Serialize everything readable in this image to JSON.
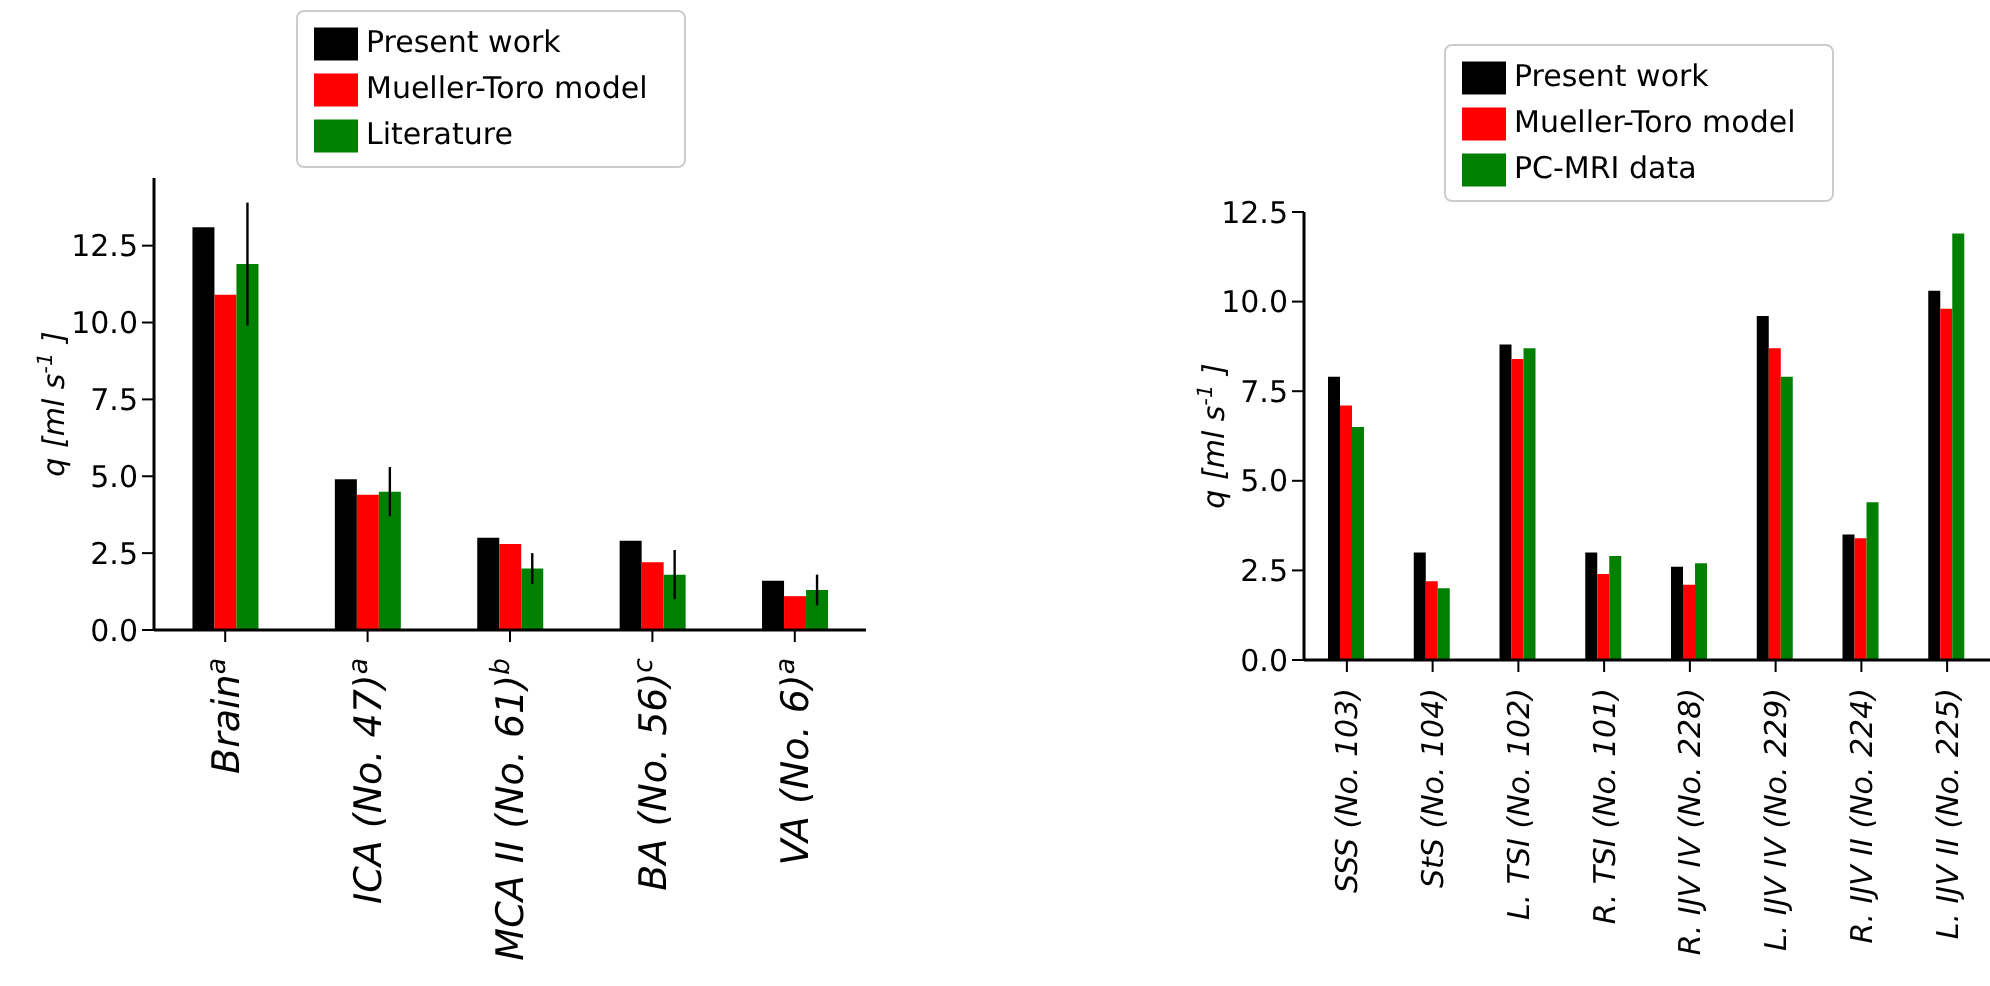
{
  "chart_data": [
    {
      "type": "bar",
      "categories": [
        "Brain$^{a}$",
        "ICA (No. 47)$^{a}$",
        "MCA II (No. 61)$^{b}$",
        "BA (No. 56)$^{c}$",
        "VA (No. 6)$^{a}$"
      ],
      "series": [
        {
          "name": "Present work",
          "color": "#000000",
          "values": [
            13.1,
            4.9,
            3.0,
            2.9,
            1.6
          ]
        },
        {
          "name": "Mueller-Toro model",
          "color": "#ff0000",
          "values": [
            10.9,
            4.4,
            2.8,
            2.2,
            1.1
          ]
        },
        {
          "name": "Literature",
          "color": "#008000",
          "values": [
            11.9,
            4.5,
            2.0,
            1.8,
            1.3
          ],
          "errors": [
            2.0,
            0.8,
            0.5,
            0.8,
            0.5
          ]
        }
      ],
      "ylabel": "q [ml s$^{-1}$]",
      "ylim": [
        0,
        14.7
      ],
      "yticks": [
        {
          "value": 0,
          "label": "0.0"
        },
        {
          "value": 2.5,
          "label": "2.5"
        },
        {
          "value": 5,
          "label": "5.0"
        },
        {
          "value": 7.5,
          "label": "7.5"
        },
        {
          "value": 10,
          "label": "10.0"
        },
        {
          "value": 12.5,
          "label": "12.5"
        }
      ],
      "legend": "top",
      "grid": false
    },
    {
      "type": "bar",
      "categories": [
        "SSS (No. 103)",
        "StS (No. 104)",
        "L. TSI (No. 102)",
        "R. TSI (No. 101)",
        "R. IJV IV (No. 228)",
        "L. IJV IV (No. 229)",
        "R. IJV II (No. 224)",
        "L. IJV II (No. 225)"
      ],
      "series": [
        {
          "name": "Present work",
          "color": "#000000",
          "values": [
            7.9,
            3.0,
            8.8,
            3.0,
            2.6,
            9.6,
            3.5,
            10.3
          ]
        },
        {
          "name": "Mueller-Toro model",
          "color": "#ff0000",
          "values": [
            7.1,
            2.2,
            8.4,
            2.4,
            2.1,
            8.7,
            3.4,
            9.8
          ]
        },
        {
          "name": "PC-MRI data",
          "color": "#008000",
          "values": [
            6.5,
            2.0,
            8.7,
            2.9,
            2.7,
            7.9,
            4.4,
            11.9
          ]
        }
      ],
      "ylabel": "q [ml s$^{-1}$]",
      "ylim": [
        0,
        12.5
      ],
      "yticks": [
        {
          "value": 0,
          "label": "0.0"
        },
        {
          "value": 2.5,
          "label": "2.5"
        },
        {
          "value": 5,
          "label": "5.0"
        },
        {
          "value": 7.5,
          "label": "7.5"
        },
        {
          "value": 10,
          "label": "10.0"
        },
        {
          "value": 12.5,
          "label": "12.5"
        }
      ],
      "legend": "top",
      "grid": false
    }
  ]
}
